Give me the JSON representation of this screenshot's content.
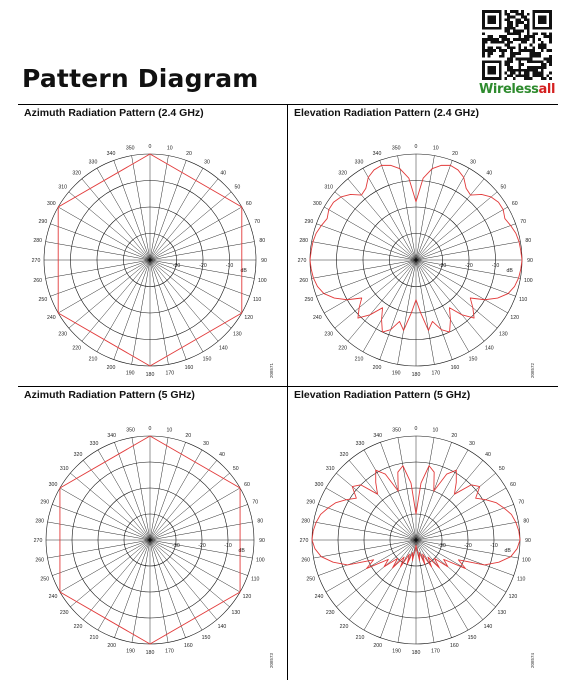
{
  "page": {
    "title": "Pattern Diagram"
  },
  "brand": {
    "logo_part1": "Wireless",
    "logo_part2": "all",
    "colors": {
      "green": "#2e8b2e",
      "red": "#d42020"
    },
    "qr_icon": "qr-code-icon"
  },
  "colors": {
    "grid": "#111111",
    "trace": "#e23a3a"
  },
  "chart_data": [
    {
      "type": "polar",
      "title": "Azimuth Radiation Pattern (2.4 GHz)",
      "unit_label": "dB",
      "radial_ticks": [
        -30,
        -20,
        -10
      ],
      "angle_labels": [
        "0",
        "10",
        "20",
        "30",
        "40",
        "50",
        "60",
        "70",
        "80",
        "90",
        "100",
        "110",
        "120",
        "130",
        "140",
        "150",
        "160",
        "170",
        "180",
        "190",
        "200",
        "210",
        "220",
        "230",
        "240",
        "250",
        "260",
        "270",
        "280",
        "290",
        "300",
        "310",
        "320",
        "330",
        "340",
        "350"
      ],
      "figure_id": "208571",
      "series": [
        {
          "angles": [
            0,
            60,
            120,
            180,
            240,
            300,
            360
          ],
          "values_db": [
            0,
            0,
            0,
            0,
            0,
            0,
            0
          ]
        }
      ]
    },
    {
      "type": "polar",
      "title": "Elevation Radiation Pattern (2.4 GHz)",
      "unit_label": "dB",
      "radial_ticks": [
        -30,
        -20,
        -10
      ],
      "angle_labels": [
        "0",
        "10",
        "20",
        "30",
        "40",
        "50",
        "60",
        "70",
        "80",
        "90",
        "100",
        "110",
        "120",
        "130",
        "140",
        "150",
        "160",
        "170",
        "180",
        "190",
        "200",
        "210",
        "220",
        "230",
        "240",
        "250",
        "260",
        "270",
        "280",
        "290",
        "300",
        "310",
        "320",
        "330",
        "340",
        "350"
      ],
      "figure_id": "208572",
      "series": [
        {
          "angles": [
            0,
            5,
            10,
            15,
            20,
            25,
            30,
            35,
            40,
            45,
            50,
            55,
            60,
            65,
            70,
            75,
            80,
            85,
            90,
            95,
            100,
            105,
            110,
            115,
            120,
            125,
            130,
            135,
            140,
            145,
            150,
            155,
            160,
            165,
            170,
            175,
            180,
            185,
            190,
            195,
            200,
            205,
            210,
            215,
            220,
            225,
            230,
            235,
            240,
            245,
            250,
            255,
            260,
            265,
            270,
            275,
            280,
            285,
            290,
            295,
            300,
            305,
            310,
            315,
            320,
            325,
            330,
            335,
            340,
            345,
            350,
            355,
            360
          ],
          "values_db": [
            -18,
            -9,
            -5,
            -3,
            -2,
            -2.5,
            -4,
            -7,
            -8,
            -5,
            -3,
            -2,
            -2,
            -3,
            -2,
            -1,
            -0.5,
            -0.3,
            0,
            -0.3,
            -0.7,
            -1.5,
            -3,
            -6,
            -10,
            -15,
            -12,
            -9,
            -13,
            -18,
            -14,
            -10,
            -12,
            -16,
            -13,
            -20,
            -25,
            -20,
            -13,
            -16,
            -12,
            -10,
            -14,
            -18,
            -13,
            -9,
            -12,
            -15,
            -10,
            -6,
            -3,
            -1.5,
            -0.7,
            -0.3,
            0,
            -0.3,
            -0.5,
            -1,
            -2,
            -3,
            -2,
            -2,
            -3,
            -5,
            -8,
            -7,
            -4,
            -2.5,
            -2,
            -3,
            -5,
            -9,
            -18
          ]
        }
      ]
    },
    {
      "type": "polar",
      "title": "Azimuth Radiation Pattern (5 GHz)",
      "unit_label": "dB",
      "radial_ticks": [
        -30,
        -20,
        -10
      ],
      "angle_labels": [
        "0",
        "10",
        "20",
        "30",
        "40",
        "50",
        "60",
        "70",
        "80",
        "90",
        "100",
        "110",
        "120",
        "130",
        "140",
        "150",
        "160",
        "170",
        "180",
        "190",
        "200",
        "210",
        "220",
        "230",
        "240",
        "250",
        "260",
        "270",
        "280",
        "290",
        "300",
        "310",
        "320",
        "330",
        "340",
        "350"
      ],
      "figure_id": "208573",
      "series": [
        {
          "angles": [
            0,
            60,
            120,
            180,
            240,
            300,
            360
          ],
          "values_db": [
            0,
            0,
            0,
            0,
            0,
            0,
            0
          ]
        }
      ]
    },
    {
      "type": "polar",
      "title": "Elevation Radiation Pattern (5 GHz)",
      "unit_label": "dB",
      "radial_ticks": [
        -30,
        -20,
        -10
      ],
      "angle_labels": [
        "0",
        "10",
        "20",
        "30",
        "40",
        "50",
        "60",
        "70",
        "80",
        "90",
        "100",
        "110",
        "120",
        "130",
        "140",
        "150",
        "160",
        "170",
        "180",
        "190",
        "200",
        "210",
        "220",
        "230",
        "240",
        "250",
        "260",
        "270",
        "280",
        "290",
        "300",
        "310",
        "320",
        "330",
        "340",
        "350"
      ],
      "figure_id": "208574",
      "series": [
        {
          "angles": [
            0,
            5,
            10,
            15,
            20,
            25,
            30,
            35,
            40,
            45,
            50,
            55,
            60,
            65,
            70,
            75,
            80,
            85,
            90,
            95,
            100,
            105,
            110,
            115,
            120,
            125,
            130,
            135,
            140,
            145,
            150,
            155,
            160,
            165,
            170,
            175,
            180,
            185,
            190,
            195,
            200,
            205,
            210,
            215,
            220,
            225,
            230,
            235,
            240,
            245,
            250,
            255,
            260,
            265,
            270,
            275,
            280,
            285,
            290,
            295,
            300,
            305,
            310,
            315,
            320,
            325,
            330,
            335,
            340,
            345,
            350,
            355,
            360
          ],
          "values_db": [
            -30,
            -18,
            -11,
            -13,
            -20,
            -12,
            -9,
            -13,
            -17,
            -10,
            -8,
            -12,
            -9,
            -6,
            -4,
            -2,
            -1,
            -0.3,
            0,
            -1,
            -3,
            -7,
            -12,
            -22,
            -18,
            -27,
            -24,
            -30,
            -26,
            -32,
            -28,
            -34,
            -30,
            -35,
            -32,
            -36,
            -38,
            -36,
            -32,
            -35,
            -30,
            -34,
            -28,
            -32,
            -26,
            -30,
            -24,
            -27,
            -18,
            -22,
            -12,
            -7,
            -3,
            -1,
            0,
            -0.3,
            -1,
            -2,
            -4,
            -6,
            -9,
            -12,
            -8,
            -10,
            -17,
            -13,
            -9,
            -12,
            -20,
            -13,
            -11,
            -18,
            -30
          ]
        }
      ]
    }
  ]
}
